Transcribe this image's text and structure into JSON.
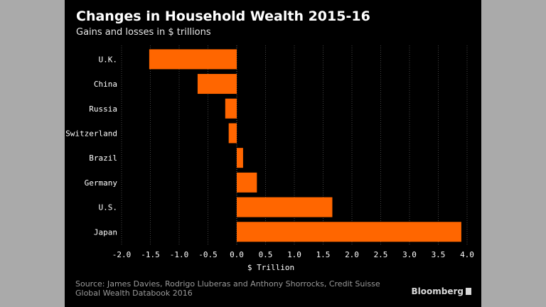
{
  "header": {
    "title": "Changes in Household Wealth 2015-16",
    "subtitle": "Gains and losses in $ trillions"
  },
  "footer": {
    "source": "Source: James Davies, Rodrigo Lluberas and Anthony Shorrocks, Credit Suisse Global Wealth Databook 2016",
    "brand": "Bloomberg"
  },
  "colors": {
    "background": "#000000",
    "bar": "#ff6600",
    "text": "#ffffff",
    "grid": "#444444"
  },
  "chart_data": {
    "type": "bar",
    "orientation": "horizontal",
    "title": "Changes in Household Wealth 2015-16",
    "subtitle": "Gains and losses in $ trillions",
    "xlabel": "$ Trillion",
    "ylabel": "",
    "categories": [
      "U.K.",
      "China",
      "Russia",
      "Switzerland",
      "Brazil",
      "Germany",
      "U.S.",
      "Japan"
    ],
    "values": [
      -1.52,
      -0.68,
      -0.2,
      -0.14,
      0.11,
      0.35,
      1.66,
      3.9
    ],
    "xlim": [
      -2.0,
      4.0
    ],
    "xticks": [
      -2.0,
      -1.5,
      -1.0,
      -0.5,
      0.0,
      0.5,
      1.0,
      1.5,
      2.0,
      2.5,
      3.0,
      3.5,
      4.0
    ],
    "xtick_labels": [
      "-2.0",
      "-1.5",
      "-1.0",
      "-0.5",
      "0.0",
      "0.5",
      "1.0",
      "1.5",
      "2.0",
      "2.5",
      "3.0",
      "3.5",
      "4.0"
    ],
    "grid": true
  }
}
